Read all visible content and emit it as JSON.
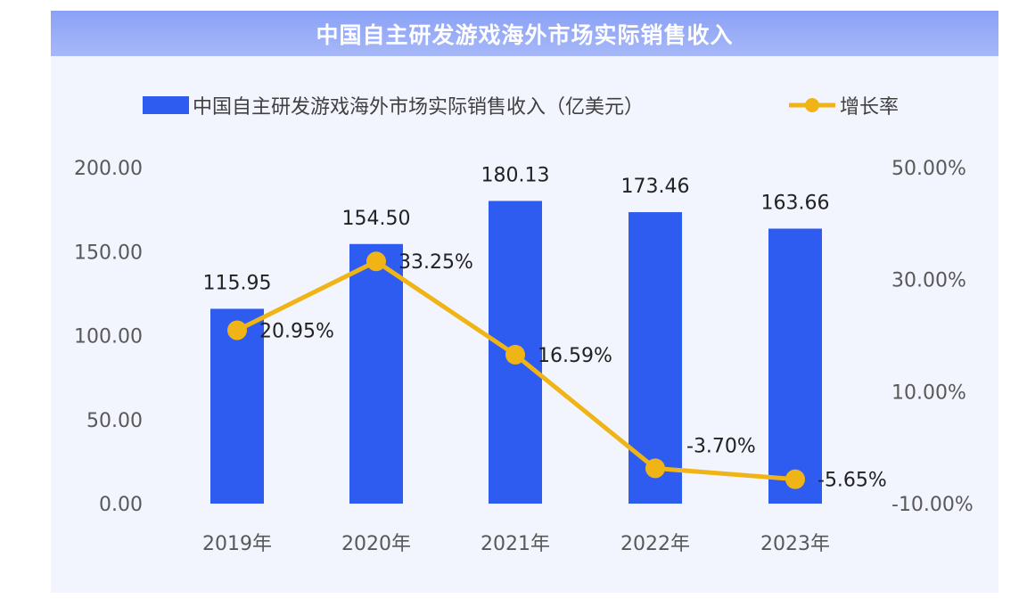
{
  "chart_data": {
    "type": "bar",
    "title": "中国自主研发游戏海外市场实际销售收入",
    "categories": [
      "2019年",
      "2020年",
      "2021年",
      "2022年",
      "2023年"
    ],
    "series": [
      {
        "name": "中国自主研发游戏海外市场实际销售收入（亿美元）",
        "type": "bar",
        "axis": "left",
        "values": [
          115.95,
          154.5,
          180.13,
          173.46,
          163.66
        ],
        "labels": [
          "115.95",
          "154.50",
          "180.13",
          "173.46",
          "163.66"
        ],
        "color": "#2f5cf0"
      },
      {
        "name": "增长率",
        "type": "line",
        "axis": "right",
        "values": [
          20.95,
          33.25,
          16.59,
          -3.7,
          -5.65
        ],
        "labels": [
          "20.95%",
          "33.25%",
          "16.59%",
          "-3.70%",
          "-5.65%"
        ],
        "color": "#f0b416"
      }
    ],
    "y_left": {
      "range": [
        0,
        200
      ],
      "ticks": [
        "0.00",
        "50.00",
        "100.00",
        "150.00",
        "200.00"
      ],
      "tick_values": [
        0,
        50,
        100,
        150,
        200
      ]
    },
    "y_right": {
      "range": [
        -10,
        50
      ],
      "ticks": [
        "-10.00%",
        "10.00%",
        "30.00%",
        "50.00%"
      ],
      "tick_values": [
        -10,
        10,
        30,
        50
      ]
    },
    "legend": "top",
    "grid": false
  }
}
